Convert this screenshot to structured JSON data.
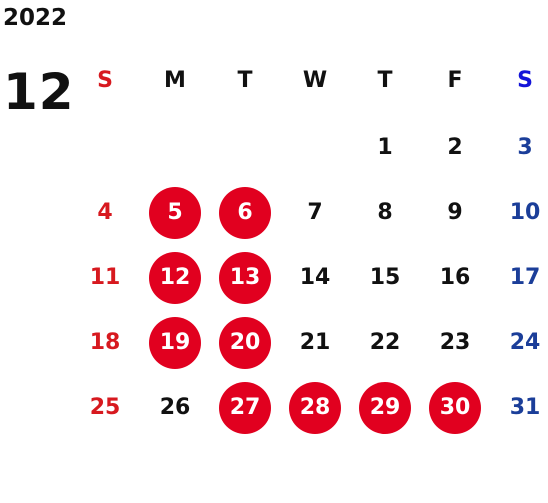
{
  "calendar": {
    "year": "2022",
    "month": "12",
    "weekdays": [
      {
        "label": "S",
        "kind": "sun"
      },
      {
        "label": "M",
        "kind": "wd"
      },
      {
        "label": "T",
        "kind": "wd"
      },
      {
        "label": "W",
        "kind": "wd"
      },
      {
        "label": "T",
        "kind": "wd"
      },
      {
        "label": "F",
        "kind": "wd"
      },
      {
        "label": "S",
        "kind": "sat"
      }
    ],
    "weeks": [
      [
        null,
        null,
        null,
        null,
        {
          "day": "1"
        },
        {
          "day": "2"
        },
        {
          "day": "3"
        }
      ],
      [
        {
          "day": "4"
        },
        {
          "day": "5",
          "highlight": true
        },
        {
          "day": "6",
          "highlight": true
        },
        {
          "day": "7"
        },
        {
          "day": "8"
        },
        {
          "day": "9"
        },
        {
          "day": "10"
        }
      ],
      [
        {
          "day": "11"
        },
        {
          "day": "12",
          "highlight": true
        },
        {
          "day": "13",
          "highlight": true
        },
        {
          "day": "14"
        },
        {
          "day": "15"
        },
        {
          "day": "16"
        },
        {
          "day": "17"
        }
      ],
      [
        {
          "day": "18"
        },
        {
          "day": "19",
          "highlight": true
        },
        {
          "day": "20",
          "highlight": true
        },
        {
          "day": "21"
        },
        {
          "day": "22"
        },
        {
          "day": "23"
        },
        {
          "day": "24"
        }
      ],
      [
        {
          "day": "25"
        },
        {
          "day": "26"
        },
        {
          "day": "27",
          "highlight": true
        },
        {
          "day": "28",
          "highlight": true
        },
        {
          "day": "29",
          "highlight": true
        },
        {
          "day": "30",
          "highlight": true
        },
        {
          "day": "31"
        }
      ]
    ],
    "colors": {
      "sunday": "#d7191f",
      "saturday": "#1b3e99",
      "saturday_header": "#1414d8",
      "highlight_fill": "#e1001f",
      "highlight_text": "#ffffff",
      "text": "#111111"
    }
  }
}
